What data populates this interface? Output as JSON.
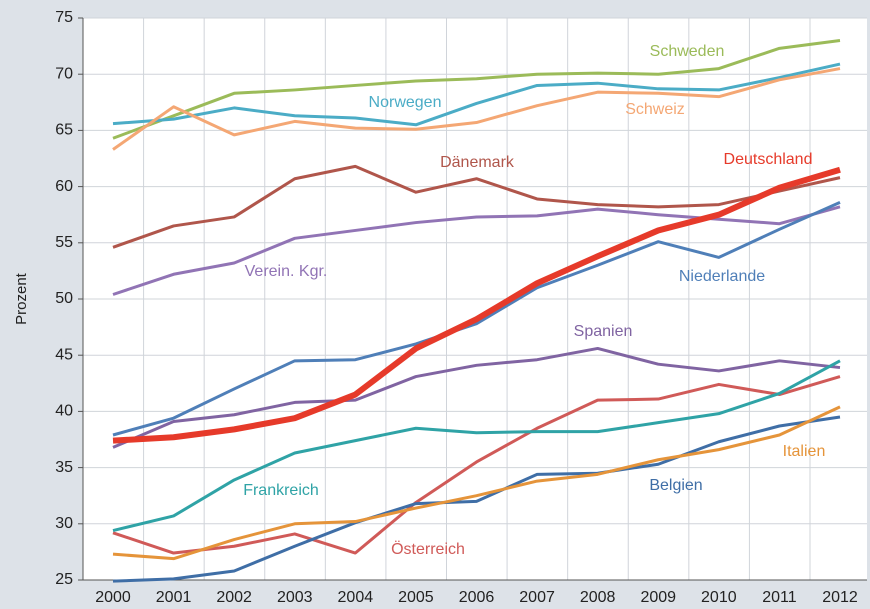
{
  "chart_data": {
    "type": "line",
    "y_label": "Prozent",
    "categories": [
      "2000",
      "2001",
      "2002",
      "2003",
      "2004",
      "2005",
      "2006",
      "2007",
      "2008",
      "2009",
      "2010",
      "2011",
      "2012"
    ],
    "ylim": [
      25,
      75
    ],
    "yticks": [
      25,
      30,
      35,
      40,
      45,
      50,
      55,
      60,
      65,
      70,
      75
    ],
    "grid": true,
    "series": [
      {
        "name": "Schweden",
        "color": "#9bbb59",
        "line_width": 3,
        "values": [
          64.3,
          66.3,
          68.3,
          68.6,
          69.0,
          69.4,
          69.6,
          70.0,
          70.1,
          70.0,
          70.5,
          72.3,
          73.0
        ]
      },
      {
        "name": "Norwegen",
        "color": "#4bacc6",
        "line_width": 3,
        "values": [
          65.6,
          66.0,
          67.0,
          66.3,
          66.1,
          65.5,
          67.4,
          69.0,
          69.2,
          68.7,
          68.6,
          69.7,
          70.9
        ]
      },
      {
        "name": "Schweiz",
        "color": "#f4a774",
        "line_width": 3,
        "values": [
          63.3,
          67.1,
          64.6,
          65.8,
          65.2,
          65.1,
          65.7,
          67.2,
          68.4,
          68.3,
          68.0,
          69.5,
          70.5
        ]
      },
      {
        "name": "Dänemark",
        "color": "#b0564b",
        "line_width": 3,
        "values": [
          54.6,
          56.5,
          57.3,
          60.7,
          61.8,
          59.5,
          60.7,
          58.9,
          58.4,
          58.2,
          58.4,
          59.6,
          60.8
        ]
      },
      {
        "name": "Verein. Kgr.",
        "color": "#9174b5",
        "line_width": 3,
        "values": [
          50.4,
          52.2,
          53.2,
          55.4,
          56.1,
          56.8,
          57.3,
          57.4,
          58.0,
          57.5,
          57.1,
          56.7,
          58.2
        ]
      },
      {
        "name": "Niederlande",
        "color": "#4f7fb8",
        "line_width": 3,
        "values": [
          37.9,
          39.4,
          42.0,
          44.5,
          44.6,
          46.0,
          47.8,
          51.0,
          53.0,
          55.1,
          53.7,
          56.2,
          58.6
        ]
      },
      {
        "name": "Spanien",
        "color": "#8064a2",
        "line_width": 3,
        "values": [
          36.8,
          39.1,
          39.7,
          40.8,
          41.0,
          43.1,
          44.1,
          44.6,
          45.6,
          44.2,
          43.6,
          44.5,
          43.9
        ]
      },
      {
        "name": "Österreich",
        "color": "#d05a58",
        "line_width": 3,
        "values": [
          29.2,
          27.4,
          28.0,
          29.1,
          27.4,
          31.9,
          35.5,
          38.5,
          41.0,
          41.1,
          42.4,
          41.5,
          43.1
        ]
      },
      {
        "name": "Frankreich",
        "color": "#2fa3a6",
        "line_width": 3,
        "values": [
          29.4,
          30.7,
          33.9,
          36.3,
          37.4,
          38.5,
          38.1,
          38.2,
          38.2,
          39.0,
          39.8,
          41.6,
          44.5
        ]
      },
      {
        "name": "Belgien",
        "color": "#3f6ea6",
        "line_width": 3,
        "values": [
          24.9,
          25.1,
          25.8,
          28.0,
          30.1,
          31.8,
          32.0,
          34.4,
          34.5,
          35.3,
          37.3,
          38.7,
          39.5
        ]
      },
      {
        "name": "Italien",
        "color": "#e5943a",
        "line_width": 3,
        "values": [
          27.3,
          26.9,
          28.6,
          30.0,
          30.2,
          31.4,
          32.5,
          33.8,
          34.4,
          35.7,
          36.6,
          37.9,
          40.4
        ]
      },
      {
        "name": "Deutschland",
        "color": "#e63a2a",
        "line_width": 6,
        "values": [
          37.4,
          37.7,
          38.4,
          39.4,
          41.5,
          45.6,
          48.2,
          51.4,
          53.8,
          56.1,
          57.5,
          59.9,
          61.5
        ]
      }
    ]
  }
}
